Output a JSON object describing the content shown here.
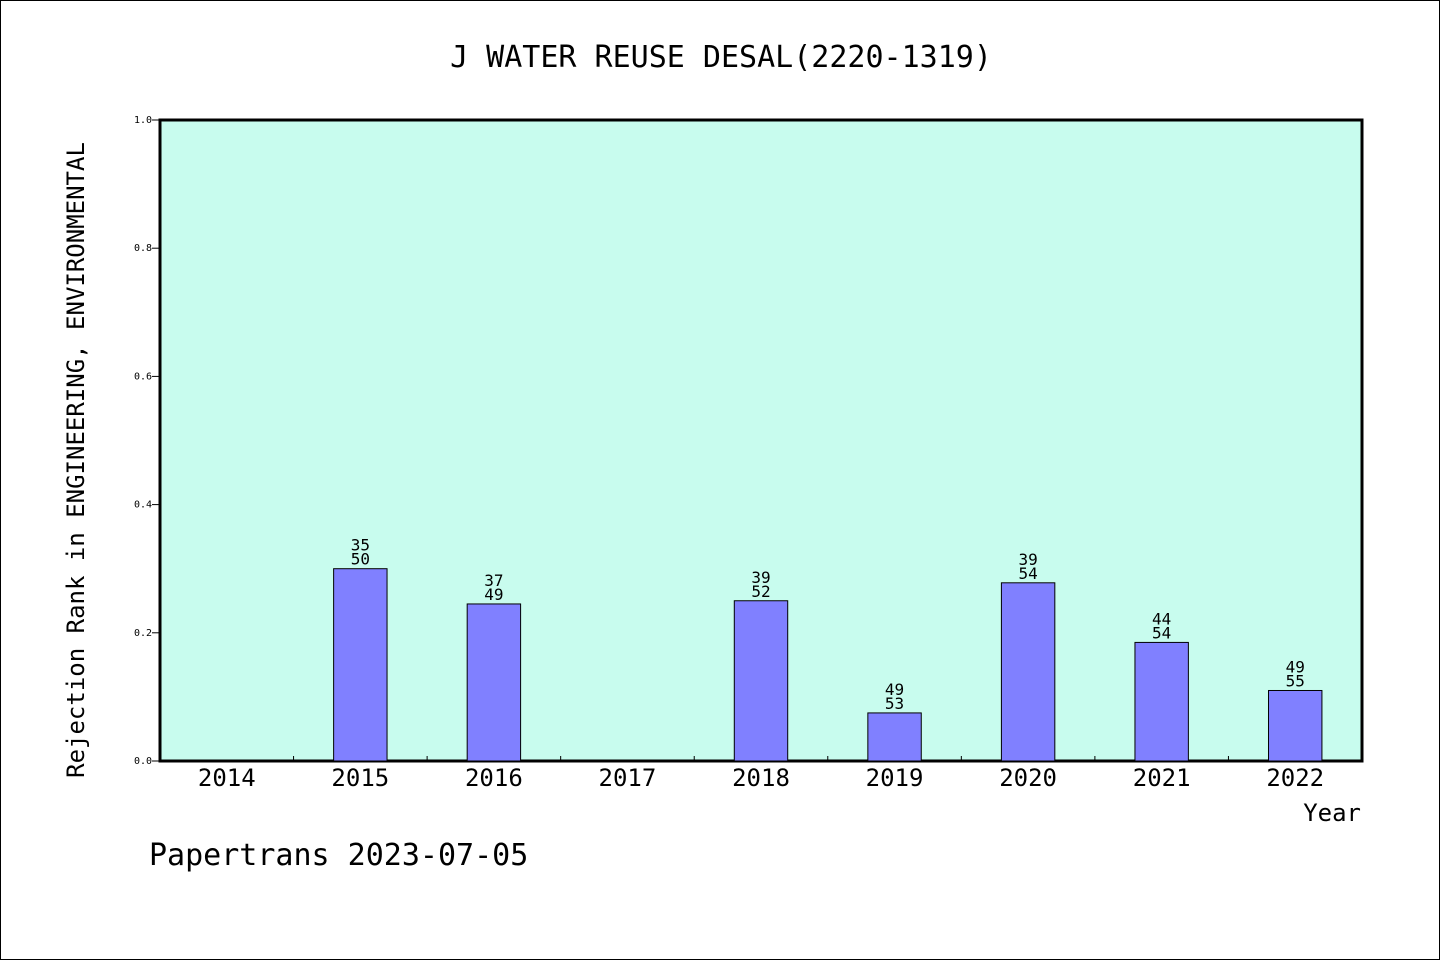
{
  "chart_data": {
    "type": "bar",
    "title": "J WATER REUSE DESAL(2220-1319)",
    "xlabel": "Year",
    "ylabel": "Rejection Rank in ENGINEERING, ENVIRONMENTAL",
    "categories": [
      "2014",
      "2015",
      "2016",
      "2017",
      "2018",
      "2019",
      "2020",
      "2021",
      "2022"
    ],
    "values": [
      null,
      0.3,
      0.245,
      null,
      0.25,
      0.075,
      0.278,
      0.185,
      0.11
    ],
    "bar_labels": [
      null,
      [
        "35",
        "50"
      ],
      [
        "37",
        "49"
      ],
      null,
      [
        "39",
        "52"
      ],
      [
        "49",
        "53"
      ],
      [
        "39",
        "54"
      ],
      [
        "44",
        "54"
      ],
      [
        "49",
        "55"
      ]
    ],
    "ylim": [
      0,
      1.0
    ],
    "yticks": [
      "0.0",
      "0.2",
      "0.4",
      "0.6",
      "0.8",
      "1.0"
    ],
    "grid": false,
    "colors": {
      "plot_background": "#c8fcee",
      "bar_fill": "#8080ff",
      "bar_stroke": "#000000"
    }
  },
  "footer": "Papertrans 2023-07-05"
}
